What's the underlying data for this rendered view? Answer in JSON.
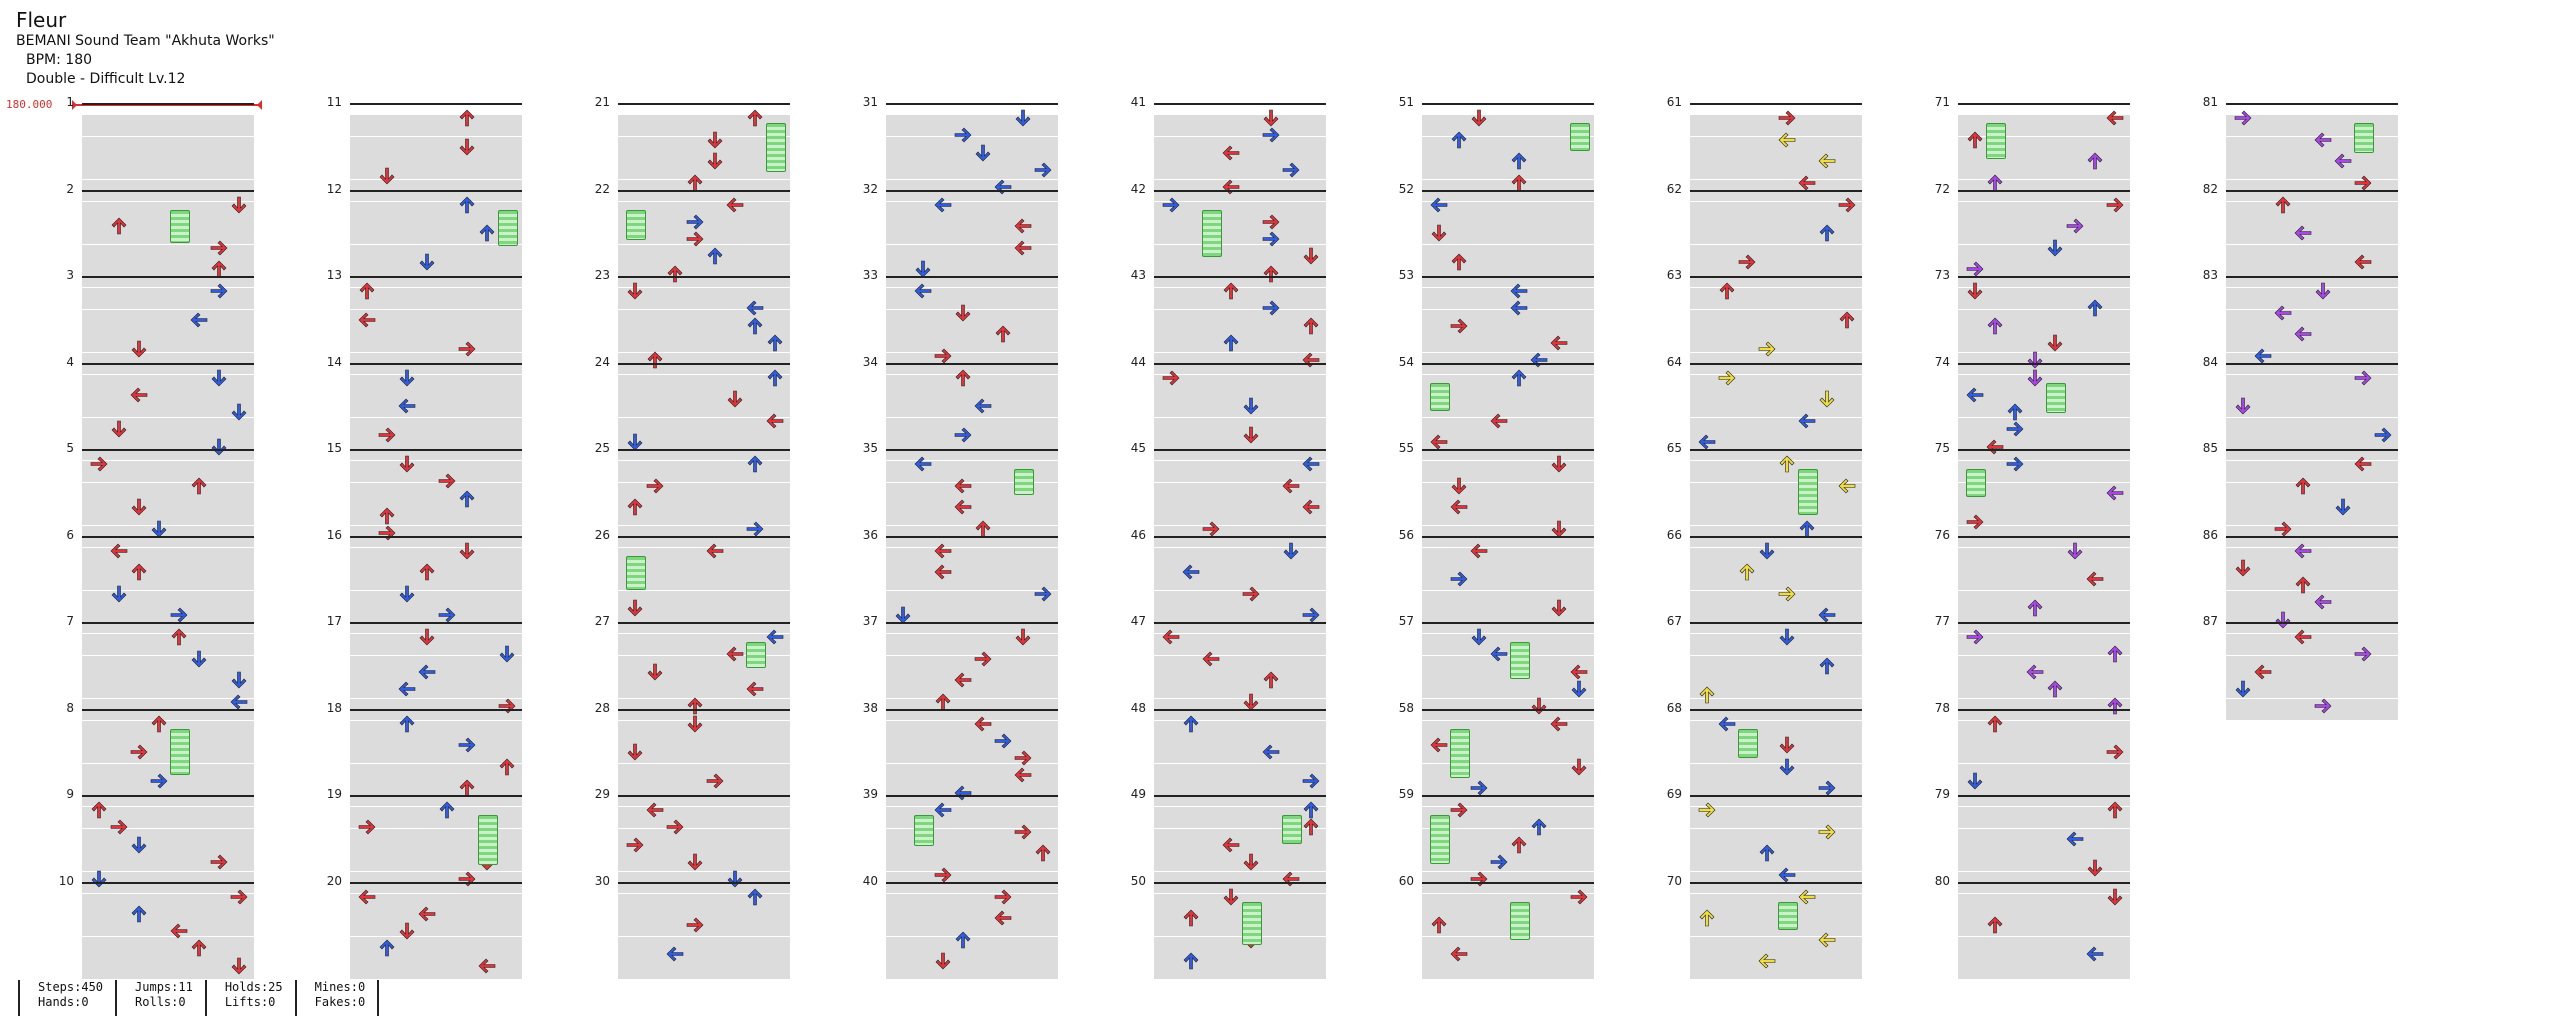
{
  "song": {
    "title": "Fleur",
    "artist": "BEMANI Sound Team \"Akhuta Works\"",
    "bpm_text": "BPM: 180",
    "chart_text": "Double - Difficult  Lv.12"
  },
  "bpm_marker": {
    "value": "180.000",
    "color": "#d83030"
  },
  "colors": {
    "red": "#e0333a",
    "blue": "#2f5ce0",
    "yellow": "#f0dc3c",
    "purple": "#a946e6",
    "hold": "#7fd67f"
  },
  "footer": {
    "steps": "Steps:450",
    "hands": "Hands:0",
    "jumps": "Jumps:11",
    "rolls": "Rolls:0",
    "holds": "Holds:25",
    "lifts": "Lifts:0",
    "mines": "Mines:0",
    "fakes": "Fakes:0"
  },
  "measure_labels": [
    "1",
    "2",
    "3",
    "4",
    "5",
    "6",
    "7",
    "8",
    "9",
    "10",
    "11",
    "12",
    "13",
    "14",
    "15",
    "16",
    "17",
    "18",
    "19",
    "20",
    "21",
    "22",
    "23",
    "24",
    "25",
    "26",
    "27",
    "28",
    "29",
    "30",
    "31",
    "32",
    "33",
    "34",
    "35",
    "36",
    "37",
    "38",
    "39",
    "40",
    "41",
    "42",
    "43",
    "44",
    "45",
    "46",
    "47",
    "48",
    "49",
    "50",
    "51",
    "52",
    "53",
    "54",
    "55",
    "56",
    "57",
    "58",
    "59",
    "60",
    "61",
    "62",
    "63",
    "64",
    "65",
    "66",
    "67",
    "68",
    "69",
    "70",
    "71",
    "72",
    "73",
    "74",
    "75",
    "76",
    "77",
    "78",
    "79",
    "80",
    "81",
    "82",
    "83",
    "84",
    "85",
    "86",
    "87"
  ],
  "chart_data": {
    "type": "stepchart",
    "mode": "Double",
    "difficulty": "Difficult",
    "level": 12,
    "bpm": 180,
    "total_measures": 87,
    "lanes": [
      "P1-left",
      "P1-down",
      "P1-up",
      "P1-right",
      "P2-left",
      "P2-down",
      "P2-up",
      "P2-right"
    ],
    "arrow_palette": {
      "quarter": "red",
      "eighth": "blue",
      "twelfth": "purple",
      "sixteenth": "yellow"
    },
    "steps": 450,
    "jumps": 11,
    "holds": 25,
    "mines": 0,
    "hands": 0,
    "rolls": 0,
    "lifts": 0,
    "fakes": 0
  }
}
